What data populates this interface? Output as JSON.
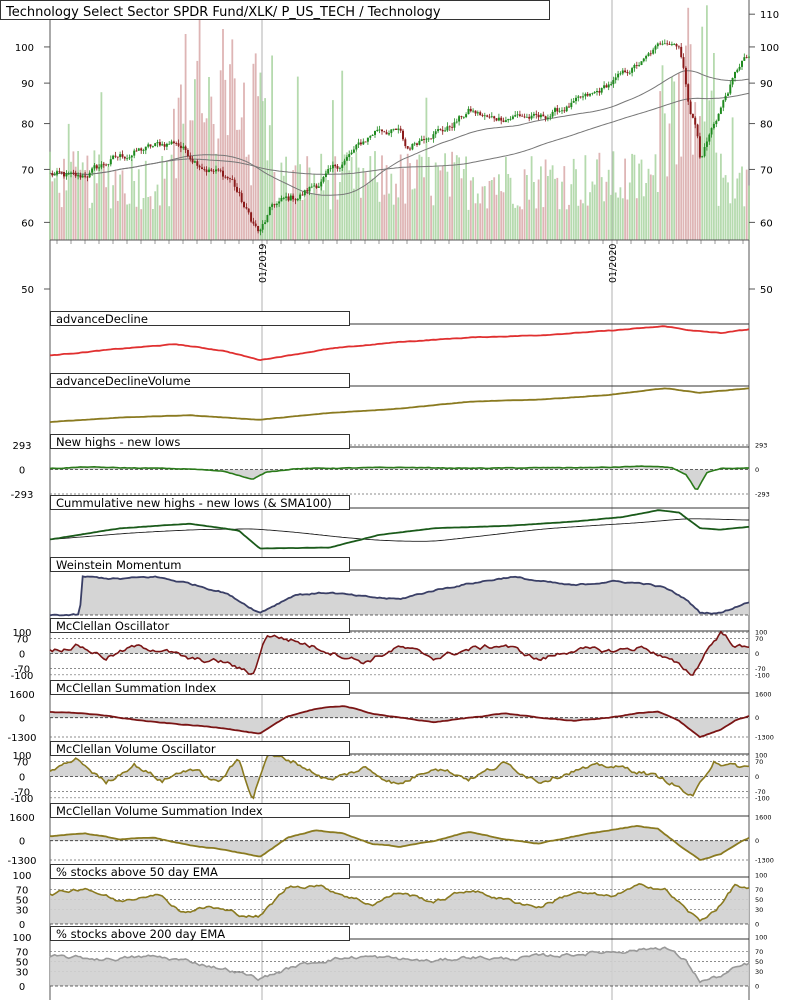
{
  "title": "Technology Select Sector SPDR Fund/XLK/ P_US_TECH / Technology",
  "colors": {
    "up_candle": "#1e8a1e",
    "down_candle": "#8b1a1a",
    "volume_up": "#a8d4a0",
    "volume_down": "#d8a8a8",
    "sma": "#777777",
    "ad_line": "#e03030",
    "olive": "#8a7a20",
    "green": "#2a7a1a",
    "dark_green": "#1a5a1a",
    "navy": "#3a3f66",
    "maroon": "#7a1515",
    "gray_line": "#999999",
    "fill": "#d0d0d0",
    "grid": "#b0b0b0"
  },
  "chart_data": [
    {
      "type": "candlestick",
      "name": "price",
      "title": "Technology Select Sector SPDR Fund/XLK/ P_US_TECH / Technology",
      "y_scale": "log",
      "y_ticks": [
        "110",
        "100",
        "90",
        "80",
        "70",
        "60",
        "50"
      ],
      "x_tick_labels": [
        "01/2019",
        "01/2020"
      ],
      "overlays": [
        "SMA (short)",
        "SMA (long)",
        "volume bars"
      ],
      "keypoints": [
        {
          "t": 0.0,
          "v": 69
        },
        {
          "t": 0.04,
          "v": 68
        },
        {
          "t": 0.09,
          "v": 72
        },
        {
          "t": 0.13,
          "v": 74
        },
        {
          "t": 0.18,
          "v": 76
        },
        {
          "t": 0.2,
          "v": 73
        },
        {
          "t": 0.23,
          "v": 70
        },
        {
          "t": 0.26,
          "v": 68
        },
        {
          "t": 0.28,
          "v": 62
        },
        {
          "t": 0.3,
          "v": 58
        },
        {
          "t": 0.32,
          "v": 63
        },
        {
          "t": 0.36,
          "v": 65
        },
        {
          "t": 0.4,
          "v": 69
        },
        {
          "t": 0.43,
          "v": 73
        },
        {
          "t": 0.47,
          "v": 79
        },
        {
          "t": 0.5,
          "v": 78
        },
        {
          "t": 0.51,
          "v": 74
        },
        {
          "t": 0.54,
          "v": 78
        },
        {
          "t": 0.57,
          "v": 79
        },
        {
          "t": 0.6,
          "v": 83
        },
        {
          "t": 0.63,
          "v": 81
        },
        {
          "t": 0.67,
          "v": 82
        },
        {
          "t": 0.7,
          "v": 81
        },
        {
          "t": 0.74,
          "v": 84
        },
        {
          "t": 0.78,
          "v": 87
        },
        {
          "t": 0.81,
          "v": 91
        },
        {
          "t": 0.85,
          "v": 96
        },
        {
          "t": 0.88,
          "v": 102
        },
        {
          "t": 0.9,
          "v": 101
        },
        {
          "t": 0.915,
          "v": 84
        },
        {
          "t": 0.925,
          "v": 79
        },
        {
          "t": 0.93,
          "v": 72
        },
        {
          "t": 0.945,
          "v": 78
        },
        {
          "t": 0.96,
          "v": 84
        },
        {
          "t": 0.975,
          "v": 90
        },
        {
          "t": 0.99,
          "v": 96
        },
        {
          "t": 1.0,
          "v": 97
        }
      ]
    },
    {
      "type": "line",
      "name": "advanceDecline",
      "title": "advanceDecline",
      "keypoints": [
        {
          "t": 0.0,
          "v": 0.3
        },
        {
          "t": 0.1,
          "v": 0.45
        },
        {
          "t": 0.18,
          "v": 0.55
        },
        {
          "t": 0.25,
          "v": 0.4
        },
        {
          "t": 0.3,
          "v": 0.2
        },
        {
          "t": 0.4,
          "v": 0.45
        },
        {
          "t": 0.5,
          "v": 0.6
        },
        {
          "t": 0.6,
          "v": 0.7
        },
        {
          "t": 0.7,
          "v": 0.75
        },
        {
          "t": 0.8,
          "v": 0.85
        },
        {
          "t": 0.88,
          "v": 0.95
        },
        {
          "t": 0.92,
          "v": 0.85
        },
        {
          "t": 0.96,
          "v": 0.8
        },
        {
          "t": 1.0,
          "v": 0.88
        }
      ]
    },
    {
      "type": "line",
      "name": "advanceDeclineVolume",
      "title": "advanceDeclineVolume",
      "keypoints": [
        {
          "t": 0.0,
          "v": 0.2
        },
        {
          "t": 0.1,
          "v": 0.3
        },
        {
          "t": 0.2,
          "v": 0.35
        },
        {
          "t": 0.3,
          "v": 0.25
        },
        {
          "t": 0.4,
          "v": 0.4
        },
        {
          "t": 0.5,
          "v": 0.5
        },
        {
          "t": 0.6,
          "v": 0.65
        },
        {
          "t": 0.7,
          "v": 0.7
        },
        {
          "t": 0.8,
          "v": 0.8
        },
        {
          "t": 0.88,
          "v": 0.95
        },
        {
          "t": 0.93,
          "v": 0.85
        },
        {
          "t": 1.0,
          "v": 0.95
        }
      ]
    },
    {
      "type": "area",
      "name": "new_highs_lows",
      "title": "New highs - new lows",
      "y_ticks": [
        "293",
        "0",
        "-293"
      ],
      "keypoints": [
        {
          "t": 0.0,
          "v": 10
        },
        {
          "t": 0.05,
          "v": 30
        },
        {
          "t": 0.1,
          "v": 20
        },
        {
          "t": 0.15,
          "v": 15
        },
        {
          "t": 0.2,
          "v": 5
        },
        {
          "t": 0.25,
          "v": -20
        },
        {
          "t": 0.29,
          "v": -120
        },
        {
          "t": 0.31,
          "v": -30
        },
        {
          "t": 0.35,
          "v": 10
        },
        {
          "t": 0.4,
          "v": 15
        },
        {
          "t": 0.5,
          "v": 25
        },
        {
          "t": 0.6,
          "v": 15
        },
        {
          "t": 0.7,
          "v": 20
        },
        {
          "t": 0.8,
          "v": 25
        },
        {
          "t": 0.85,
          "v": 40
        },
        {
          "t": 0.89,
          "v": 20
        },
        {
          "t": 0.91,
          "v": -60
        },
        {
          "t": 0.925,
          "v": -260
        },
        {
          "t": 0.94,
          "v": -40
        },
        {
          "t": 0.96,
          "v": 10
        },
        {
          "t": 1.0,
          "v": 15
        }
      ]
    },
    {
      "type": "line",
      "name": "cumulative_new_highs_lows",
      "title": "Cummulative new highs - new lows (& SMA100)",
      "series": [
        "value",
        "SMA100"
      ],
      "keypoints": [
        {
          "t": 0.0,
          "v": 0.3
        },
        {
          "t": 0.1,
          "v": 0.55
        },
        {
          "t": 0.2,
          "v": 0.65
        },
        {
          "t": 0.27,
          "v": 0.5
        },
        {
          "t": 0.3,
          "v": 0.1
        },
        {
          "t": 0.4,
          "v": 0.12
        },
        {
          "t": 0.47,
          "v": 0.4
        },
        {
          "t": 0.55,
          "v": 0.55
        },
        {
          "t": 0.65,
          "v": 0.6
        },
        {
          "t": 0.75,
          "v": 0.7
        },
        {
          "t": 0.82,
          "v": 0.8
        },
        {
          "t": 0.87,
          "v": 0.95
        },
        {
          "t": 0.9,
          "v": 0.9
        },
        {
          "t": 0.93,
          "v": 0.55
        },
        {
          "t": 0.96,
          "v": 0.52
        },
        {
          "t": 1.0,
          "v": 0.58
        }
      ]
    },
    {
      "type": "area",
      "name": "weinstein_momentum",
      "title": "Weinstein Momentum",
      "keypoints": [
        {
          "t": 0.0,
          "v": 0.0
        },
        {
          "t": 0.043,
          "v": 0.0
        },
        {
          "t": 0.045,
          "v": 0.85
        },
        {
          "t": 0.1,
          "v": 0.8
        },
        {
          "t": 0.15,
          "v": 0.85
        },
        {
          "t": 0.2,
          "v": 0.7
        },
        {
          "t": 0.25,
          "v": 0.5
        },
        {
          "t": 0.3,
          "v": 0.05
        },
        {
          "t": 0.35,
          "v": 0.45
        },
        {
          "t": 0.4,
          "v": 0.5
        },
        {
          "t": 0.45,
          "v": 0.4
        },
        {
          "t": 0.5,
          "v": 0.35
        },
        {
          "t": 0.55,
          "v": 0.55
        },
        {
          "t": 0.6,
          "v": 0.7
        },
        {
          "t": 0.66,
          "v": 0.85
        },
        {
          "t": 0.7,
          "v": 0.75
        },
        {
          "t": 0.75,
          "v": 0.65
        },
        {
          "t": 0.8,
          "v": 0.75
        },
        {
          "t": 0.85,
          "v": 0.7
        },
        {
          "t": 0.88,
          "v": 0.6
        },
        {
          "t": 0.91,
          "v": 0.35
        },
        {
          "t": 0.93,
          "v": 0.05
        },
        {
          "t": 0.96,
          "v": 0.05
        },
        {
          "t": 1.0,
          "v": 0.3
        }
      ]
    },
    {
      "type": "area",
      "name": "mcclellan_oscillator",
      "title": "McClellan Oscillator",
      "y_ticks": [
        "100",
        "70",
        "0",
        "-70",
        "-100"
      ],
      "keypoints": [
        {
          "t": 0.0,
          "v": 10
        },
        {
          "t": 0.04,
          "v": 40
        },
        {
          "t": 0.08,
          "v": -20
        },
        {
          "t": 0.12,
          "v": 30
        },
        {
          "t": 0.16,
          "v": 20
        },
        {
          "t": 0.2,
          "v": -30
        },
        {
          "t": 0.25,
          "v": -40
        },
        {
          "t": 0.29,
          "v": -100
        },
        {
          "t": 0.31,
          "v": 90
        },
        {
          "t": 0.35,
          "v": 60
        },
        {
          "t": 0.4,
          "v": 10
        },
        {
          "t": 0.45,
          "v": -40
        },
        {
          "t": 0.5,
          "v": 30
        },
        {
          "t": 0.55,
          "v": -20
        },
        {
          "t": 0.6,
          "v": 20
        },
        {
          "t": 0.65,
          "v": 40
        },
        {
          "t": 0.7,
          "v": -30
        },
        {
          "t": 0.75,
          "v": 20
        },
        {
          "t": 0.8,
          "v": 10
        },
        {
          "t": 0.85,
          "v": 30
        },
        {
          "t": 0.89,
          "v": -40
        },
        {
          "t": 0.92,
          "v": -100
        },
        {
          "t": 0.94,
          "v": 20
        },
        {
          "t": 0.96,
          "v": 100
        },
        {
          "t": 0.98,
          "v": 40
        },
        {
          "t": 1.0,
          "v": 20
        }
      ]
    },
    {
      "type": "area",
      "name": "mcclellan_summation",
      "title": "McClellan Summation Index",
      "y_ticks": [
        "1600",
        "0",
        "-1300"
      ],
      "keypoints": [
        {
          "t": 0.0,
          "v": 400
        },
        {
          "t": 0.05,
          "v": 300
        },
        {
          "t": 0.1,
          "v": 0
        },
        {
          "t": 0.15,
          "v": -300
        },
        {
          "t": 0.2,
          "v": -500
        },
        {
          "t": 0.25,
          "v": -700
        },
        {
          "t": 0.3,
          "v": -1100
        },
        {
          "t": 0.34,
          "v": 100
        },
        {
          "t": 0.38,
          "v": 600
        },
        {
          "t": 0.42,
          "v": 800
        },
        {
          "t": 0.46,
          "v": 300
        },
        {
          "t": 0.5,
          "v": 0
        },
        {
          "t": 0.55,
          "v": -300
        },
        {
          "t": 0.6,
          "v": 0
        },
        {
          "t": 0.65,
          "v": 300
        },
        {
          "t": 0.7,
          "v": 0
        },
        {
          "t": 0.75,
          "v": -200
        },
        {
          "t": 0.8,
          "v": 0
        },
        {
          "t": 0.84,
          "v": 300
        },
        {
          "t": 0.87,
          "v": 400
        },
        {
          "t": 0.9,
          "v": -200
        },
        {
          "t": 0.93,
          "v": -1300
        },
        {
          "t": 0.96,
          "v": -800
        },
        {
          "t": 0.98,
          "v": -200
        },
        {
          "t": 1.0,
          "v": 100
        }
      ]
    },
    {
      "type": "area",
      "name": "mcclellan_volume_oscillator",
      "title": "McClellan Volume Oscillator",
      "y_ticks": [
        "100",
        "70",
        "0",
        "-70",
        "-100"
      ],
      "keypoints": [
        {
          "t": 0.0,
          "v": 30
        },
        {
          "t": 0.04,
          "v": 80
        },
        {
          "t": 0.08,
          "v": -30
        },
        {
          "t": 0.12,
          "v": 60
        },
        {
          "t": 0.16,
          "v": -20
        },
        {
          "t": 0.2,
          "v": 40
        },
        {
          "t": 0.24,
          "v": -30
        },
        {
          "t": 0.27,
          "v": 80
        },
        {
          "t": 0.29,
          "v": -100
        },
        {
          "t": 0.31,
          "v": 100
        },
        {
          "t": 0.35,
          "v": 70
        },
        {
          "t": 0.4,
          "v": -20
        },
        {
          "t": 0.45,
          "v": 40
        },
        {
          "t": 0.5,
          "v": -40
        },
        {
          "t": 0.55,
          "v": 50
        },
        {
          "t": 0.6,
          "v": -10
        },
        {
          "t": 0.65,
          "v": 60
        },
        {
          "t": 0.7,
          "v": -20
        },
        {
          "t": 0.75,
          "v": 30
        },
        {
          "t": 0.8,
          "v": 50
        },
        {
          "t": 0.85,
          "v": 20
        },
        {
          "t": 0.89,
          "v": -30
        },
        {
          "t": 0.92,
          "v": -100
        },
        {
          "t": 0.95,
          "v": 80
        },
        {
          "t": 0.97,
          "v": 50
        },
        {
          "t": 1.0,
          "v": 40
        }
      ]
    },
    {
      "type": "area",
      "name": "mcclellan_volume_summation",
      "title": "McClellan Volume Summation Index",
      "y_ticks": [
        "1600",
        "0",
        "-1300"
      ],
      "keypoints": [
        {
          "t": 0.0,
          "v": 300
        },
        {
          "t": 0.05,
          "v": 500
        },
        {
          "t": 0.1,
          "v": 100
        },
        {
          "t": 0.15,
          "v": 200
        },
        {
          "t": 0.2,
          "v": -300
        },
        {
          "t": 0.25,
          "v": -600
        },
        {
          "t": 0.3,
          "v": -1100
        },
        {
          "t": 0.34,
          "v": 200
        },
        {
          "t": 0.38,
          "v": 700
        },
        {
          "t": 0.42,
          "v": 500
        },
        {
          "t": 0.46,
          "v": -200
        },
        {
          "t": 0.5,
          "v": -400
        },
        {
          "t": 0.55,
          "v": 0
        },
        {
          "t": 0.6,
          "v": 600
        },
        {
          "t": 0.65,
          "v": 100
        },
        {
          "t": 0.7,
          "v": -200
        },
        {
          "t": 0.75,
          "v": 300
        },
        {
          "t": 0.8,
          "v": 700
        },
        {
          "t": 0.84,
          "v": 1000
        },
        {
          "t": 0.87,
          "v": 800
        },
        {
          "t": 0.9,
          "v": -300
        },
        {
          "t": 0.93,
          "v": -1300
        },
        {
          "t": 0.96,
          "v": -900
        },
        {
          "t": 0.99,
          "v": 0
        },
        {
          "t": 1.0,
          "v": 200
        }
      ]
    },
    {
      "type": "area",
      "name": "pct_above_50ema",
      "title": "% stocks above 50 day EMA",
      "y_ticks": [
        "100",
        "70",
        "50",
        "30",
        "0"
      ],
      "keypoints": [
        {
          "t": 0.0,
          "v": 60
        },
        {
          "t": 0.05,
          "v": 75
        },
        {
          "t": 0.1,
          "v": 45
        },
        {
          "t": 0.15,
          "v": 65
        },
        {
          "t": 0.19,
          "v": 25
        },
        {
          "t": 0.23,
          "v": 35
        },
        {
          "t": 0.27,
          "v": 20
        },
        {
          "t": 0.3,
          "v": 15
        },
        {
          "t": 0.34,
          "v": 75
        },
        {
          "t": 0.38,
          "v": 80
        },
        {
          "t": 0.42,
          "v": 60
        },
        {
          "t": 0.46,
          "v": 40
        },
        {
          "t": 0.5,
          "v": 65
        },
        {
          "t": 0.55,
          "v": 45
        },
        {
          "t": 0.6,
          "v": 70
        },
        {
          "t": 0.65,
          "v": 50
        },
        {
          "t": 0.7,
          "v": 35
        },
        {
          "t": 0.75,
          "v": 65
        },
        {
          "t": 0.8,
          "v": 55
        },
        {
          "t": 0.85,
          "v": 80
        },
        {
          "t": 0.88,
          "v": 70
        },
        {
          "t": 0.91,
          "v": 30
        },
        {
          "t": 0.93,
          "v": 5
        },
        {
          "t": 0.96,
          "v": 40
        },
        {
          "t": 0.98,
          "v": 80
        },
        {
          "t": 1.0,
          "v": 70
        }
      ]
    },
    {
      "type": "area",
      "name": "pct_above_200ema",
      "title": "% stocks above 200 day EMA",
      "y_ticks": [
        "100",
        "70",
        "50",
        "30",
        "0"
      ],
      "keypoints": [
        {
          "t": 0.0,
          "v": 60
        },
        {
          "t": 0.08,
          "v": 55
        },
        {
          "t": 0.15,
          "v": 60
        },
        {
          "t": 0.2,
          "v": 50
        },
        {
          "t": 0.25,
          "v": 35
        },
        {
          "t": 0.3,
          "v": 15
        },
        {
          "t": 0.35,
          "v": 40
        },
        {
          "t": 0.4,
          "v": 55
        },
        {
          "t": 0.45,
          "v": 60
        },
        {
          "t": 0.5,
          "v": 55
        },
        {
          "t": 0.55,
          "v": 50
        },
        {
          "t": 0.6,
          "v": 60
        },
        {
          "t": 0.65,
          "v": 55
        },
        {
          "t": 0.7,
          "v": 60
        },
        {
          "t": 0.75,
          "v": 65
        },
        {
          "t": 0.8,
          "v": 70
        },
        {
          "t": 0.85,
          "v": 75
        },
        {
          "t": 0.88,
          "v": 80
        },
        {
          "t": 0.91,
          "v": 50
        },
        {
          "t": 0.93,
          "v": 10
        },
        {
          "t": 0.96,
          "v": 20
        },
        {
          "t": 0.98,
          "v": 35
        },
        {
          "t": 1.0,
          "v": 45
        }
      ]
    }
  ]
}
